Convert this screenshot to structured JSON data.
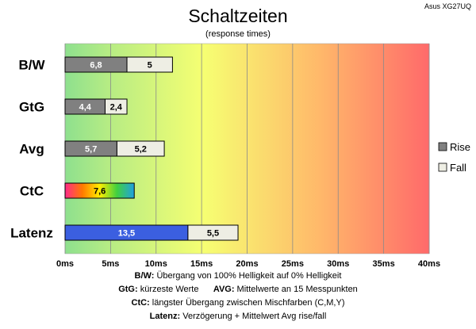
{
  "corner_label": "Asus XG27UQ",
  "chart_data": {
    "type": "bar",
    "orientation": "horizontal",
    "stacked": true,
    "title": "Schaltzeiten",
    "subtitle": "(response times)",
    "categories": [
      "B/W",
      "GtG",
      "Avg",
      "CtC",
      "Latenz"
    ],
    "series": [
      {
        "name": "Rise",
        "values": [
          6.8,
          4.4,
          5.7,
          7.6,
          13.5
        ],
        "color": "#808080"
      },
      {
        "name": "Fall",
        "values": [
          5,
          2.4,
          5.2,
          null,
          5.5
        ],
        "color": "#eeeee4"
      }
    ],
    "special_colors": {
      "CtC": "rainbow",
      "Latenz_rise": "#3b5fe0"
    },
    "value_labels": [
      [
        "6,8",
        "5"
      ],
      [
        "4,4",
        "2,4"
      ],
      [
        "5,7",
        "5,2"
      ],
      [
        "7,6",
        ""
      ],
      [
        "13,5",
        "5,5"
      ]
    ],
    "xlim": [
      0,
      40
    ],
    "xticks": [
      0,
      5,
      10,
      15,
      20,
      25,
      30,
      35,
      40
    ],
    "xtick_labels": [
      "0ms",
      "5ms",
      "10ms",
      "15ms",
      "20ms",
      "25ms",
      "30ms",
      "35ms",
      "40ms"
    ],
    "background_gradient": [
      "#90e090",
      "#f5ff70",
      "#ff6a6a"
    ],
    "grid": true,
    "legend_position": "right"
  },
  "footnotes": [
    {
      "bold": "B/W:",
      "text": " Übergang von 100% Helligkeit auf 0% Helligkeit"
    },
    {
      "bold": "GtG:",
      "text": " kürzeste Werte",
      "bold2": "AVG:",
      "text2": " Mittelwerte an 15 Messpunkten"
    },
    {
      "bold": "CtC:",
      "text": " längster Übergang zwischen Mischfarben (C,M,Y)"
    },
    {
      "bold": "Latenz:",
      "text": " Verzögerung + Mittelwert Avg rise/fall"
    }
  ]
}
